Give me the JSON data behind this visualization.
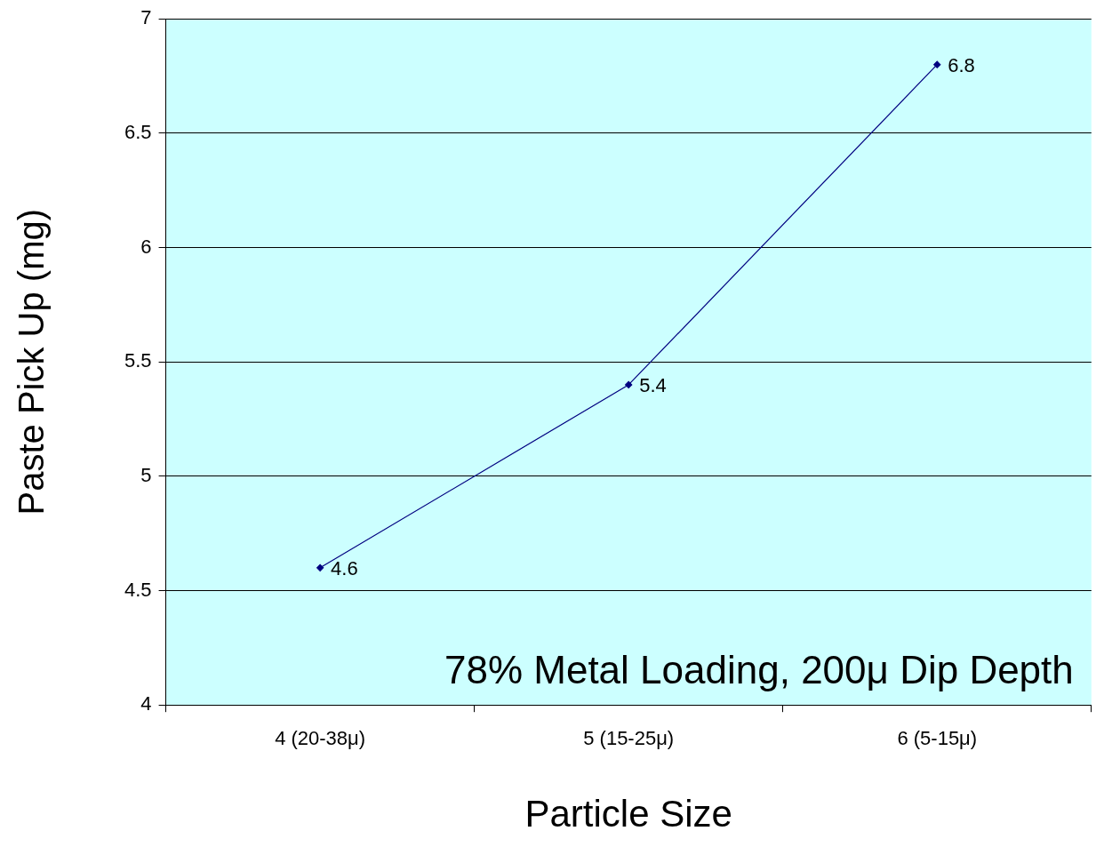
{
  "chart_data": {
    "type": "line",
    "xlabel": "Particle Size",
    "ylabel": "Paste Pick Up (mg)",
    "categories": [
      "4 (20-38μ)",
      "5 (15-25μ)",
      "6 (5-15μ)"
    ],
    "series": [
      {
        "color": "#000080",
        "values": [
          4.6,
          5.4,
          6.8
        ]
      }
    ],
    "ylim": [
      4,
      7
    ],
    "yticks": [
      4,
      4.5,
      5,
      5.5,
      6,
      6.5,
      7
    ],
    "grid": "y",
    "legend": false,
    "marker": "diamond",
    "line_style": "solid",
    "data_labels": true,
    "annotations": [
      "78% Metal Loading, 200μ Dip Depth"
    ]
  }
}
